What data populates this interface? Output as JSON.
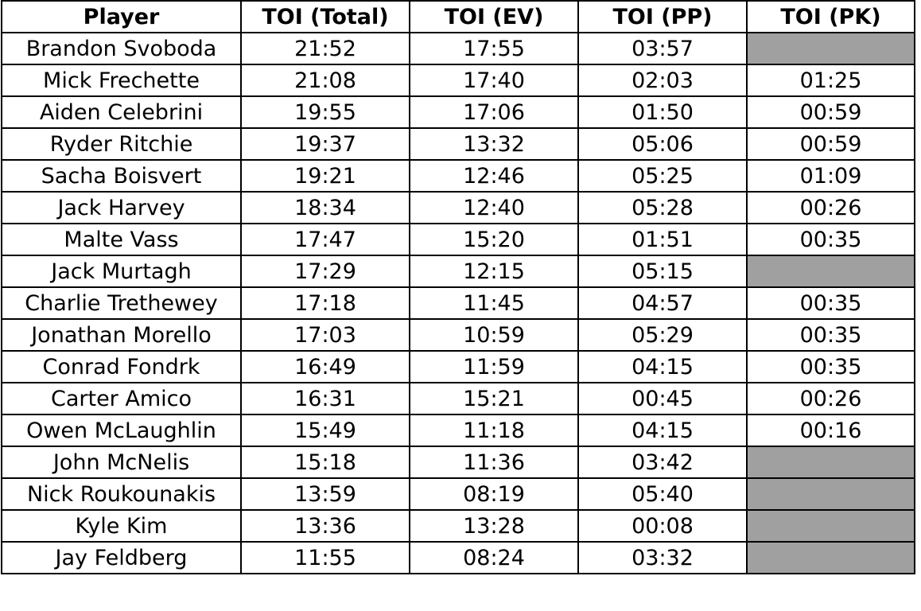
{
  "table": {
    "headers": [
      "Player",
      "TOI (Total)",
      "TOI (EV)",
      "TOI (PP)",
      "TOI (PK)"
    ],
    "rows": [
      [
        "Brandon Svoboda",
        "21:52",
        "17:55",
        "03:57",
        null
      ],
      [
        "Mick Frechette",
        "21:08",
        "17:40",
        "02:03",
        "01:25"
      ],
      [
        "Aiden Celebrini",
        "19:55",
        "17:06",
        "01:50",
        "00:59"
      ],
      [
        "Ryder Ritchie",
        "19:37",
        "13:32",
        "05:06",
        "00:59"
      ],
      [
        "Sacha Boisvert",
        "19:21",
        "12:46",
        "05:25",
        "01:09"
      ],
      [
        "Jack Harvey",
        "18:34",
        "12:40",
        "05:28",
        "00:26"
      ],
      [
        "Malte Vass",
        "17:47",
        "15:20",
        "01:51",
        "00:35"
      ],
      [
        "Jack Murtagh",
        "17:29",
        "12:15",
        "05:15",
        null
      ],
      [
        "Charlie Trethewey",
        "17:18",
        "11:45",
        "04:57",
        "00:35"
      ],
      [
        "Jonathan Morello",
        "17:03",
        "10:59",
        "05:29",
        "00:35"
      ],
      [
        "Conrad Fondrk",
        "16:49",
        "11:59",
        "04:15",
        "00:35"
      ],
      [
        "Carter Amico",
        "16:31",
        "15:21",
        "00:45",
        "00:26"
      ],
      [
        "Owen McLaughlin",
        "15:49",
        "11:18",
        "04:15",
        "00:16"
      ],
      [
        "John McNelis",
        "15:18",
        "11:36",
        "03:42",
        null
      ],
      [
        "Nick Roukounakis",
        "13:59",
        "08:19",
        "05:40",
        null
      ],
      [
        "Kyle Kim",
        "13:36",
        "13:28",
        "00:08",
        null
      ],
      [
        "Jay Feldberg",
        "11:55",
        "08:24",
        "03:32",
        null
      ]
    ]
  }
}
